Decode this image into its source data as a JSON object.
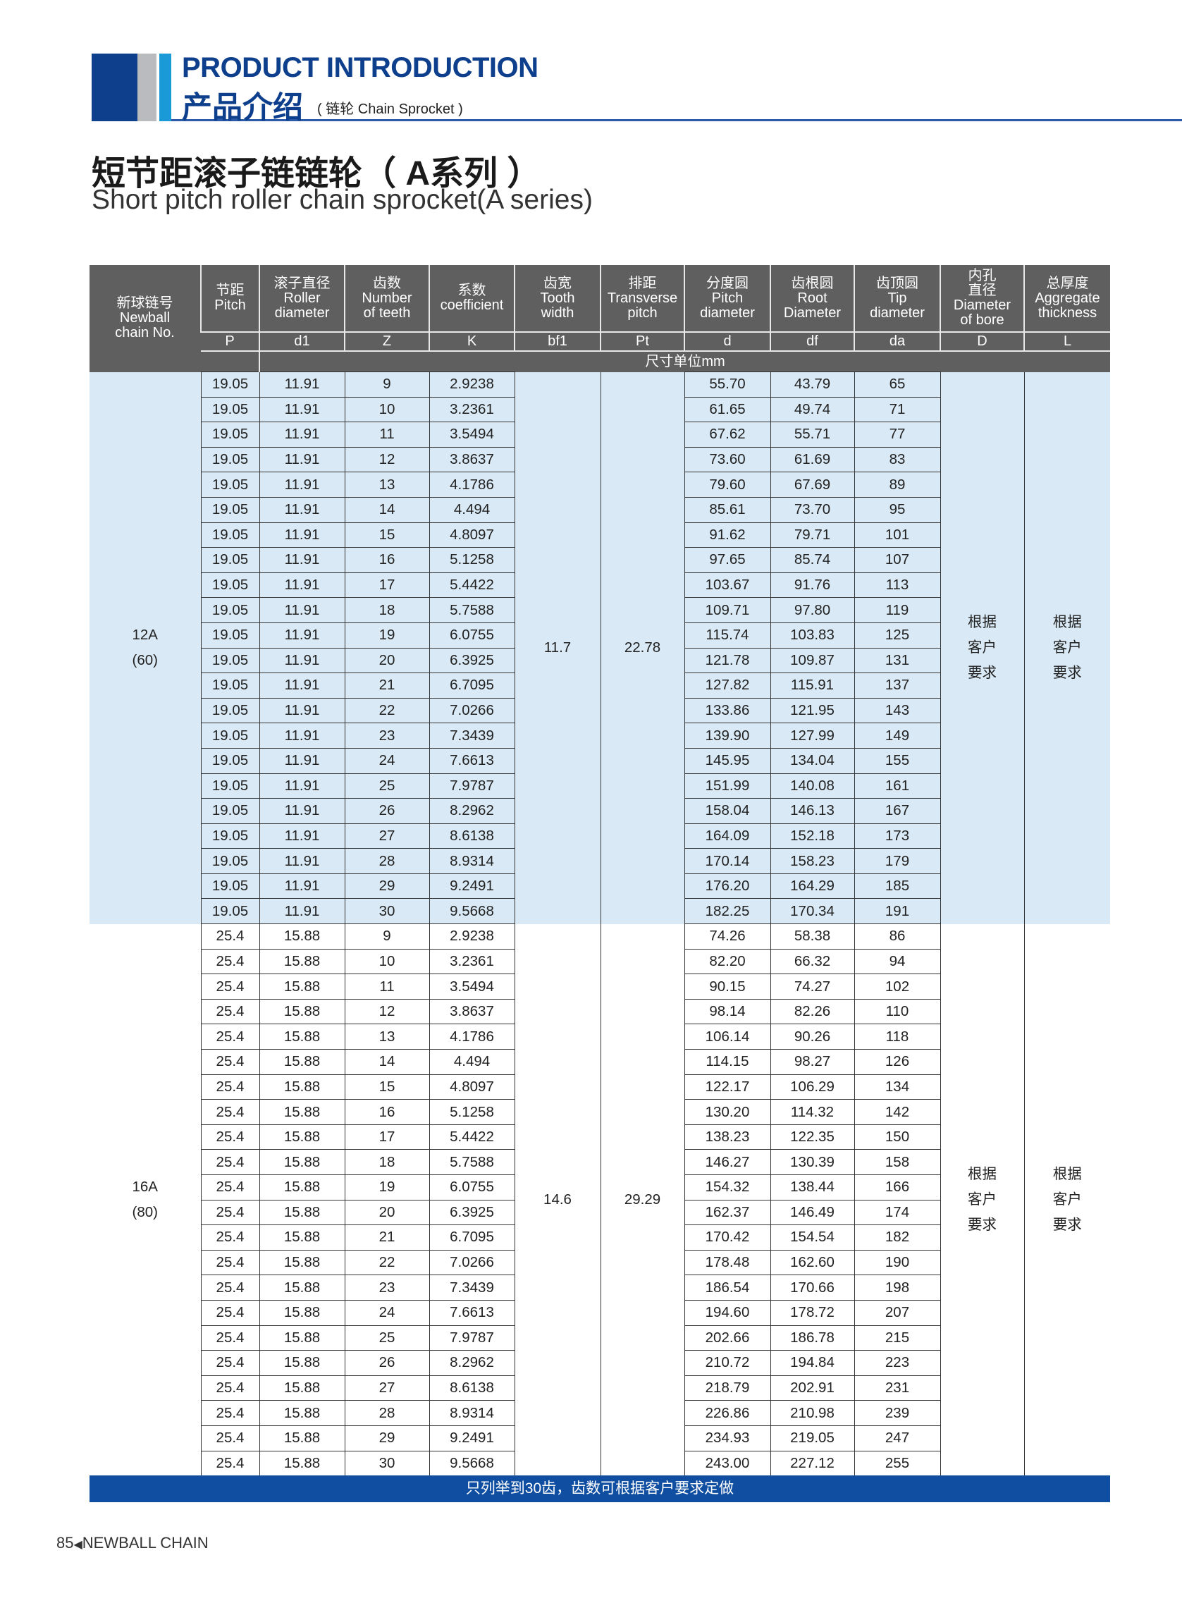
{
  "header": {
    "title_en": "PRODUCT INTRODUCTION",
    "title_cn": "产品介绍",
    "subtitle": "( 链轮 Chain Sprocket )",
    "brand_colors": {
      "dark_blue": "#0d3f8c",
      "gray": "#b9bbbf",
      "cyan": "#1a9ad6"
    }
  },
  "page_title": {
    "cn": "短节距滚子链链轮（ A系列 ）",
    "en": "Short pitch roller chain sprocket(A series)"
  },
  "table": {
    "columns": [
      {
        "label": [
          "新球链号",
          "Newball",
          "chain No."
        ],
        "symbol": ""
      },
      {
        "label": [
          "节距",
          "Pitch"
        ],
        "symbol": "P"
      },
      {
        "label": [
          "滚子直径",
          "Roller",
          "diameter"
        ],
        "symbol": "d1"
      },
      {
        "label": [
          "齿数",
          "Number",
          "of teeth"
        ],
        "symbol": "Z"
      },
      {
        "label": [
          "系数",
          "coefficient"
        ],
        "symbol": "K"
      },
      {
        "label": [
          "齿宽",
          "Tooth",
          "width"
        ],
        "symbol": "bf1"
      },
      {
        "label": [
          "排距",
          "Transverse",
          "pitch"
        ],
        "symbol": "Pt"
      },
      {
        "label": [
          "分度圆",
          "Pitch",
          "diameter"
        ],
        "symbol": "d"
      },
      {
        "label": [
          "齿根圆",
          "Root",
          "Diameter"
        ],
        "symbol": "df"
      },
      {
        "label": [
          "齿顶圆",
          "Tip",
          "diameter"
        ],
        "symbol": "da"
      },
      {
        "label": [
          "内孔",
          "直径",
          "Diameter",
          "of bore"
        ],
        "symbol": "D"
      },
      {
        "label": [
          "总厚度",
          "Aggregate",
          "thickness"
        ],
        "symbol": "L"
      }
    ],
    "unit_label": "尺寸单位mm",
    "groups": [
      {
        "chain_no": [
          "12A",
          "(60)"
        ],
        "pitch": "19.05",
        "roller": "11.91",
        "bf1": "11.7",
        "pt": "22.78",
        "bore": [
          "根据",
          "客户",
          "要求"
        ],
        "thickness": [
          "根据",
          "客户",
          "要求"
        ],
        "rows": [
          [
            "9",
            "2.9238",
            "55.70",
            "43.79",
            "65"
          ],
          [
            "10",
            "3.2361",
            "61.65",
            "49.74",
            "71"
          ],
          [
            "11",
            "3.5494",
            "67.62",
            "55.71",
            "77"
          ],
          [
            "12",
            "3.8637",
            "73.60",
            "61.69",
            "83"
          ],
          [
            "13",
            "4.1786",
            "79.60",
            "67.69",
            "89"
          ],
          [
            "14",
            "4.494",
            "85.61",
            "73.70",
            "95"
          ],
          [
            "15",
            "4.8097",
            "91.62",
            "79.71",
            "101"
          ],
          [
            "16",
            "5.1258",
            "97.65",
            "85.74",
            "107"
          ],
          [
            "17",
            "5.4422",
            "103.67",
            "91.76",
            "113"
          ],
          [
            "18",
            "5.7588",
            "109.71",
            "97.80",
            "119"
          ],
          [
            "19",
            "6.0755",
            "115.74",
            "103.83",
            "125"
          ],
          [
            "20",
            "6.3925",
            "121.78",
            "109.87",
            "131"
          ],
          [
            "21",
            "6.7095",
            "127.82",
            "115.91",
            "137"
          ],
          [
            "22",
            "7.0266",
            "133.86",
            "121.95",
            "143"
          ],
          [
            "23",
            "7.3439",
            "139.90",
            "127.99",
            "149"
          ],
          [
            "24",
            "7.6613",
            "145.95",
            "134.04",
            "155"
          ],
          [
            "25",
            "7.9787",
            "151.99",
            "140.08",
            "161"
          ],
          [
            "26",
            "8.2962",
            "158.04",
            "146.13",
            "167"
          ],
          [
            "27",
            "8.6138",
            "164.09",
            "152.18",
            "173"
          ],
          [
            "28",
            "8.9314",
            "170.14",
            "158.23",
            "179"
          ],
          [
            "29",
            "9.2491",
            "176.20",
            "164.29",
            "185"
          ],
          [
            "30",
            "9.5668",
            "182.25",
            "170.34",
            "191"
          ]
        ]
      },
      {
        "chain_no": [
          "16A",
          "(80)"
        ],
        "pitch": "25.4",
        "roller": "15.88",
        "bf1": "14.6",
        "pt": "29.29",
        "bore": [
          "根据",
          "客户",
          "要求"
        ],
        "thickness": [
          "根据",
          "客户",
          "要求"
        ],
        "rows": [
          [
            "9",
            "2.9238",
            "74.26",
            "58.38",
            "86"
          ],
          [
            "10",
            "3.2361",
            "82.20",
            "66.32",
            "94"
          ],
          [
            "11",
            "3.5494",
            "90.15",
            "74.27",
            "102"
          ],
          [
            "12",
            "3.8637",
            "98.14",
            "82.26",
            "110"
          ],
          [
            "13",
            "4.1786",
            "106.14",
            "90.26",
            "118"
          ],
          [
            "14",
            "4.494",
            "114.15",
            "98.27",
            "126"
          ],
          [
            "15",
            "4.8097",
            "122.17",
            "106.29",
            "134"
          ],
          [
            "16",
            "5.1258",
            "130.20",
            "114.32",
            "142"
          ],
          [
            "17",
            "5.4422",
            "138.23",
            "122.35",
            "150"
          ],
          [
            "18",
            "5.7588",
            "146.27",
            "130.39",
            "158"
          ],
          [
            "19",
            "6.0755",
            "154.32",
            "138.44",
            "166"
          ],
          [
            "20",
            "6.3925",
            "162.37",
            "146.49",
            "174"
          ],
          [
            "21",
            "6.7095",
            "170.42",
            "154.54",
            "182"
          ],
          [
            "22",
            "7.0266",
            "178.48",
            "162.60",
            "190"
          ],
          [
            "23",
            "7.3439",
            "186.54",
            "170.66",
            "198"
          ],
          [
            "24",
            "7.6613",
            "194.60",
            "178.72",
            "207"
          ],
          [
            "25",
            "7.9787",
            "202.66",
            "186.78",
            "215"
          ],
          [
            "26",
            "8.2962",
            "210.72",
            "194.84",
            "223"
          ],
          [
            "27",
            "8.6138",
            "218.79",
            "202.91",
            "231"
          ],
          [
            "28",
            "8.9314",
            "226.86",
            "210.98",
            "239"
          ],
          [
            "29",
            "9.2491",
            "234.93",
            "219.05",
            "247"
          ],
          [
            "30",
            "9.5668",
            "243.00",
            "227.12",
            "255"
          ]
        ]
      }
    ],
    "footnote": "只列举到30齿，齿数可根据客户要求定做",
    "colors": {
      "header_bg": "#5f5f5f",
      "group_highlight": "#d9eaf6",
      "footnote_bg": "#0f4ea0"
    }
  },
  "page_footer": {
    "page_number": "85",
    "arrow_icon": "triangle-left",
    "brand": "NEWBALL CHAIN"
  }
}
